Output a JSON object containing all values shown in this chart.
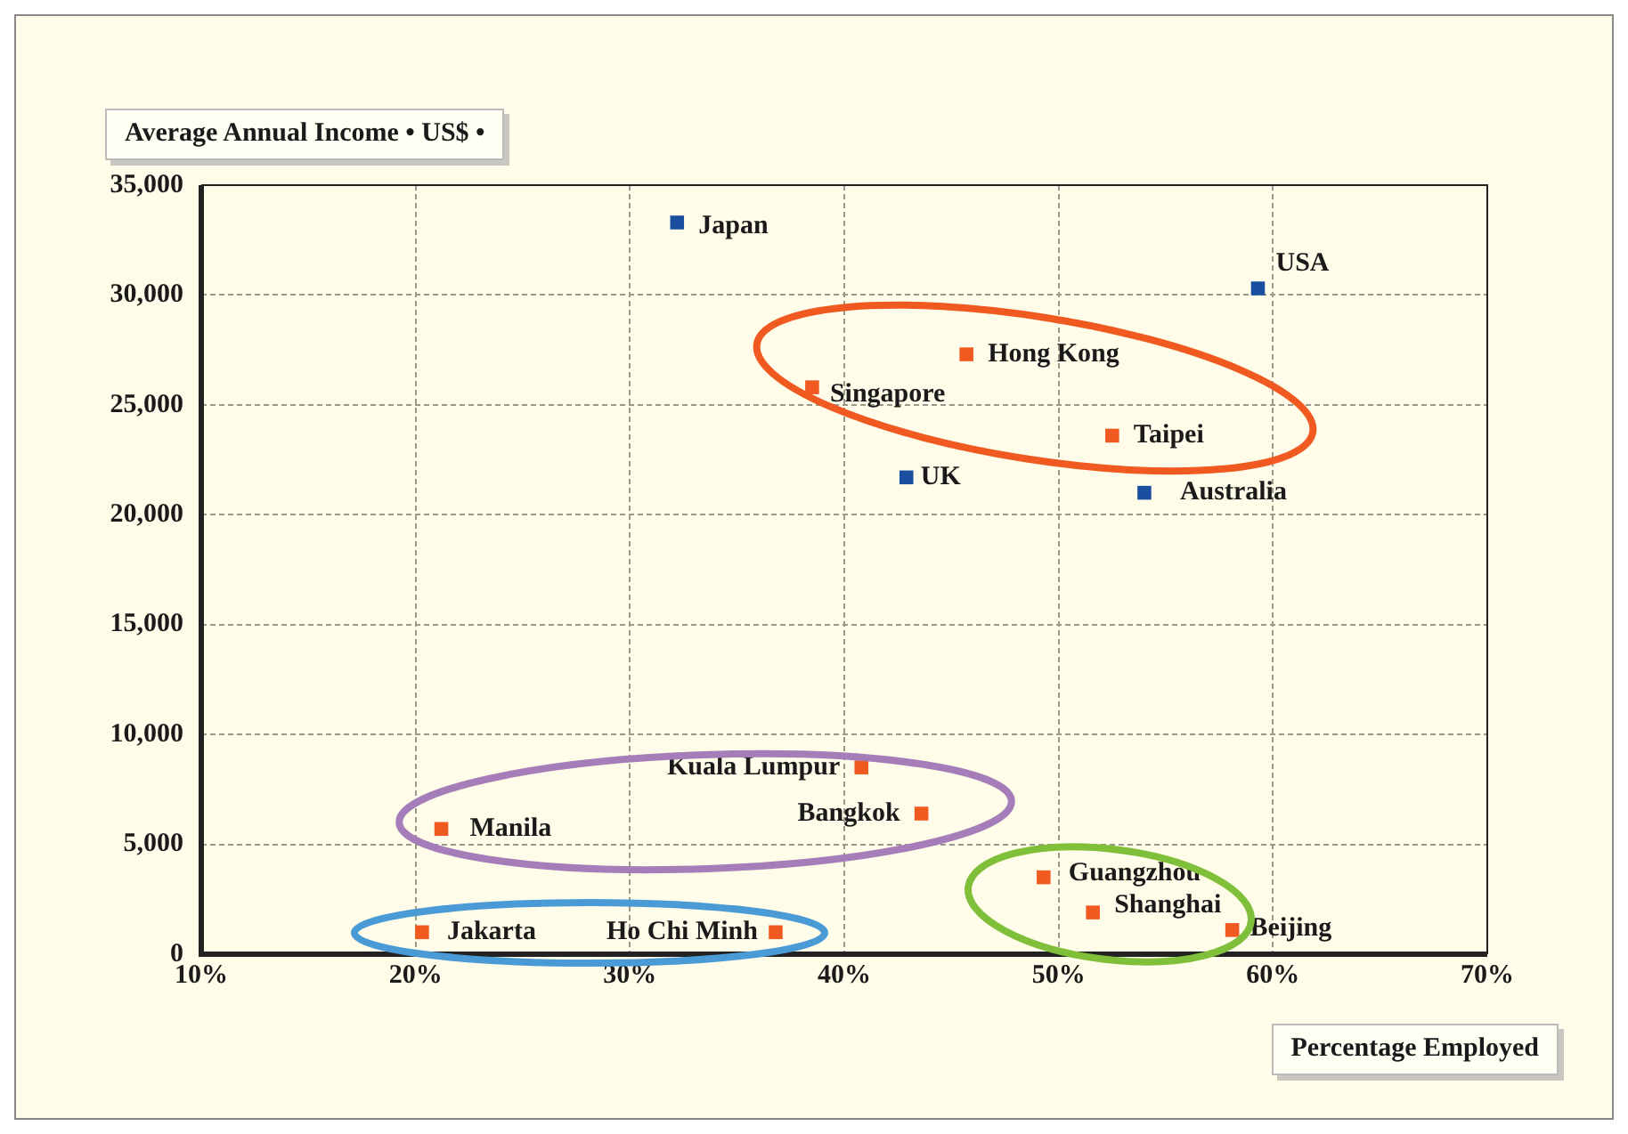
{
  "chart_data": {
    "type": "scatter",
    "xlabel": "Percentage Employed",
    "ylabel": "Average Annual Income • US$ •",
    "xlim": [
      10,
      70
    ],
    "xticks": [
      {
        "value": 10,
        "label": "10%"
      },
      {
        "value": 20,
        "label": "20%"
      },
      {
        "value": 30,
        "label": "30%"
      },
      {
        "value": 40,
        "label": "40%"
      },
      {
        "value": 50,
        "label": "50%"
      },
      {
        "value": 60,
        "label": "60%"
      },
      {
        "value": 70,
        "label": "70%"
      }
    ],
    "ylim": [
      0,
      35000
    ],
    "yticks": [
      {
        "value": 0,
        "label": "0"
      },
      {
        "value": 5000,
        "label": "5,000"
      },
      {
        "value": 10000,
        "label": "10,000"
      },
      {
        "value": 15000,
        "label": "15,000"
      },
      {
        "value": 20000,
        "label": "20,000"
      },
      {
        "value": 25000,
        "label": "25,000"
      },
      {
        "value": 30000,
        "label": "30,000"
      },
      {
        "value": 35000,
        "label": "35,000"
      }
    ],
    "grid": true,
    "legend": false,
    "marker": "square",
    "series": [
      {
        "color": "#1a4fa0",
        "x": [
          32.2,
          59.3,
          42.9,
          54.0
        ],
        "values": [
          33300,
          30300,
          21700,
          21000
        ]
      },
      {
        "color": "#f0591f",
        "x": [
          45.7,
          38.5,
          52.5,
          40.8,
          43.6,
          21.2,
          49.3,
          51.6,
          58.1,
          20.3,
          36.8
        ],
        "values": [
          27300,
          25800,
          23600,
          8500,
          6400,
          5700,
          3500,
          1900,
          1100,
          1000,
          1000
        ]
      }
    ],
    "annotations": [
      {
        "text": "Japan",
        "x": 32.2,
        "y": 33300
      },
      {
        "text": "USA",
        "x": 59.3,
        "y": 30300
      },
      {
        "text": "UK",
        "x": 42.9,
        "y": 21700
      },
      {
        "text": "Australia",
        "x": 54.0,
        "y": 21000
      },
      {
        "text": "Hong Kong",
        "x": 45.7,
        "y": 27300
      },
      {
        "text": "Singapore",
        "x": 38.5,
        "y": 25800
      },
      {
        "text": "Taipei",
        "x": 52.5,
        "y": 23600
      },
      {
        "text": "Kuala Lumpur",
        "x": 40.8,
        "y": 8500
      },
      {
        "text": "Bangkok",
        "x": 43.6,
        "y": 6400
      },
      {
        "text": "Manila",
        "x": 21.2,
        "y": 5700
      },
      {
        "text": "Guangzhou",
        "x": 49.3,
        "y": 3500
      },
      {
        "text": "Shanghai",
        "x": 51.6,
        "y": 1900
      },
      {
        "text": "Beijing",
        "x": 58.1,
        "y": 1100
      },
      {
        "text": "Jakarta",
        "x": 20.3,
        "y": 1000
      },
      {
        "text": "Ho Chi Minh",
        "x": 36.8,
        "y": 1000
      }
    ]
  }
}
